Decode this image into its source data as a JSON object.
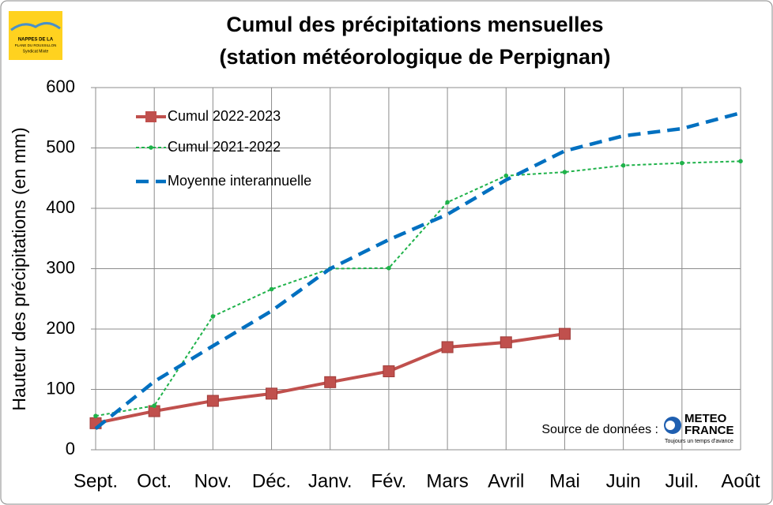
{
  "logo_text": [
    "NAPPES DE LA",
    "PLANE DU ROUSSILLON",
    "Syndicat Mixte"
  ],
  "source": {
    "label": "Source de données :",
    "logo_top": "METEO",
    "logo_bottom": "FRANCE",
    "logo_tagline": "Toujours un temps d'avance"
  },
  "chart_data": {
    "type": "line",
    "title": "Cumul des précipitations mensuelles",
    "subtitle": "(station météorologique de Perpignan)",
    "y_label": "Hauteur des précipitations (en mm)",
    "categories": [
      "Sept.",
      "Oct.",
      "Nov.",
      "Déc.",
      "Janv.",
      "Fév.",
      "Mars",
      "Avril",
      "Mai",
      "Juin",
      "Juil.",
      "Août"
    ],
    "series": [
      {
        "name": "Cumul 2022-2023",
        "color": "#c0504d",
        "values": [
          44,
          64,
          81,
          93,
          112,
          130,
          170,
          178,
          192,
          null,
          null,
          null
        ]
      },
      {
        "name": "Cumul 2021-2022",
        "color": "#1fb24a",
        "values": [
          56,
          73,
          221,
          266,
          300,
          301,
          410,
          454,
          460,
          471,
          475,
          478
        ]
      },
      {
        "name": "Moyenne interannuelle",
        "color": "#0070c0",
        "values": [
          35,
          113,
          172,
          230,
          300,
          348,
          390,
          447,
          495,
          520,
          532,
          558
        ]
      }
    ],
    "ylim": [
      0,
      600
    ],
    "yticks": [
      0,
      100,
      200,
      300,
      400,
      500,
      600
    ],
    "grid": true
  }
}
